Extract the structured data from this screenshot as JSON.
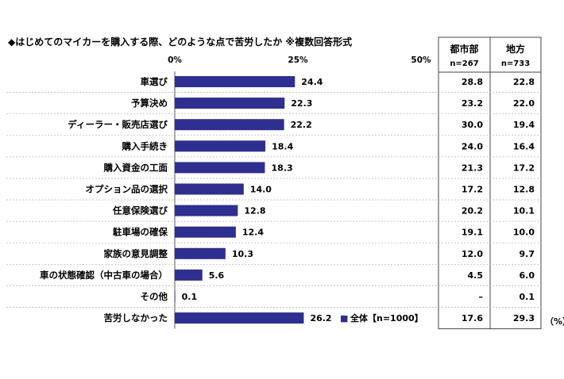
{
  "chart_data": {
    "type": "bar",
    "orientation": "horizontal",
    "title": "◆はじめてのマイカーを購入する際、どのような点で苦労したか ※複数回答形式",
    "x_ticks": [
      "0%",
      "25%",
      "50%"
    ],
    "xlim": [
      0,
      50
    ],
    "categories": [
      "車選び",
      "予算決め",
      "ディーラー・販売店選び",
      "購入手続き",
      "購入資金の工面",
      "オプション品の選択",
      "任意保険選び",
      "駐車場の確保",
      "家族の意見調整",
      "車の状態確認（中古車の場合）",
      "その他",
      "苦労しなかった"
    ],
    "series": [
      {
        "name": "全体【n=1000】",
        "values": [
          24.4,
          22.3,
          22.2,
          18.4,
          18.3,
          14.0,
          12.8,
          12.4,
          10.3,
          5.6,
          0.1,
          26.2
        ],
        "labels": [
          "24.4",
          "22.3",
          "22.2",
          "18.4",
          "18.3",
          "14.0",
          "12.8",
          "12.4",
          "10.3",
          "5.6",
          "0.1",
          "26.2"
        ],
        "color": "#2e2f8f"
      }
    ],
    "legend_marker": "■",
    "legend_placement": "inside-bottom",
    "table": {
      "columns": [
        {
          "header": "都市部",
          "sub": "n=267"
        },
        {
          "header": "地方",
          "sub": "n=733"
        }
      ],
      "rows": [
        [
          "28.8",
          "22.8"
        ],
        [
          "23.2",
          "22.0"
        ],
        [
          "30.0",
          "19.4"
        ],
        [
          "24.0",
          "16.4"
        ],
        [
          "21.3",
          "17.2"
        ],
        [
          "17.2",
          "12.8"
        ],
        [
          "20.2",
          "10.1"
        ],
        [
          "19.1",
          "10.0"
        ],
        [
          "12.0",
          "9.7"
        ],
        [
          "4.5",
          "6.0"
        ],
        [
          "–",
          "0.1"
        ],
        [
          "17.6",
          "29.3"
        ]
      ]
    },
    "unit": "（%）",
    "grid": false
  }
}
